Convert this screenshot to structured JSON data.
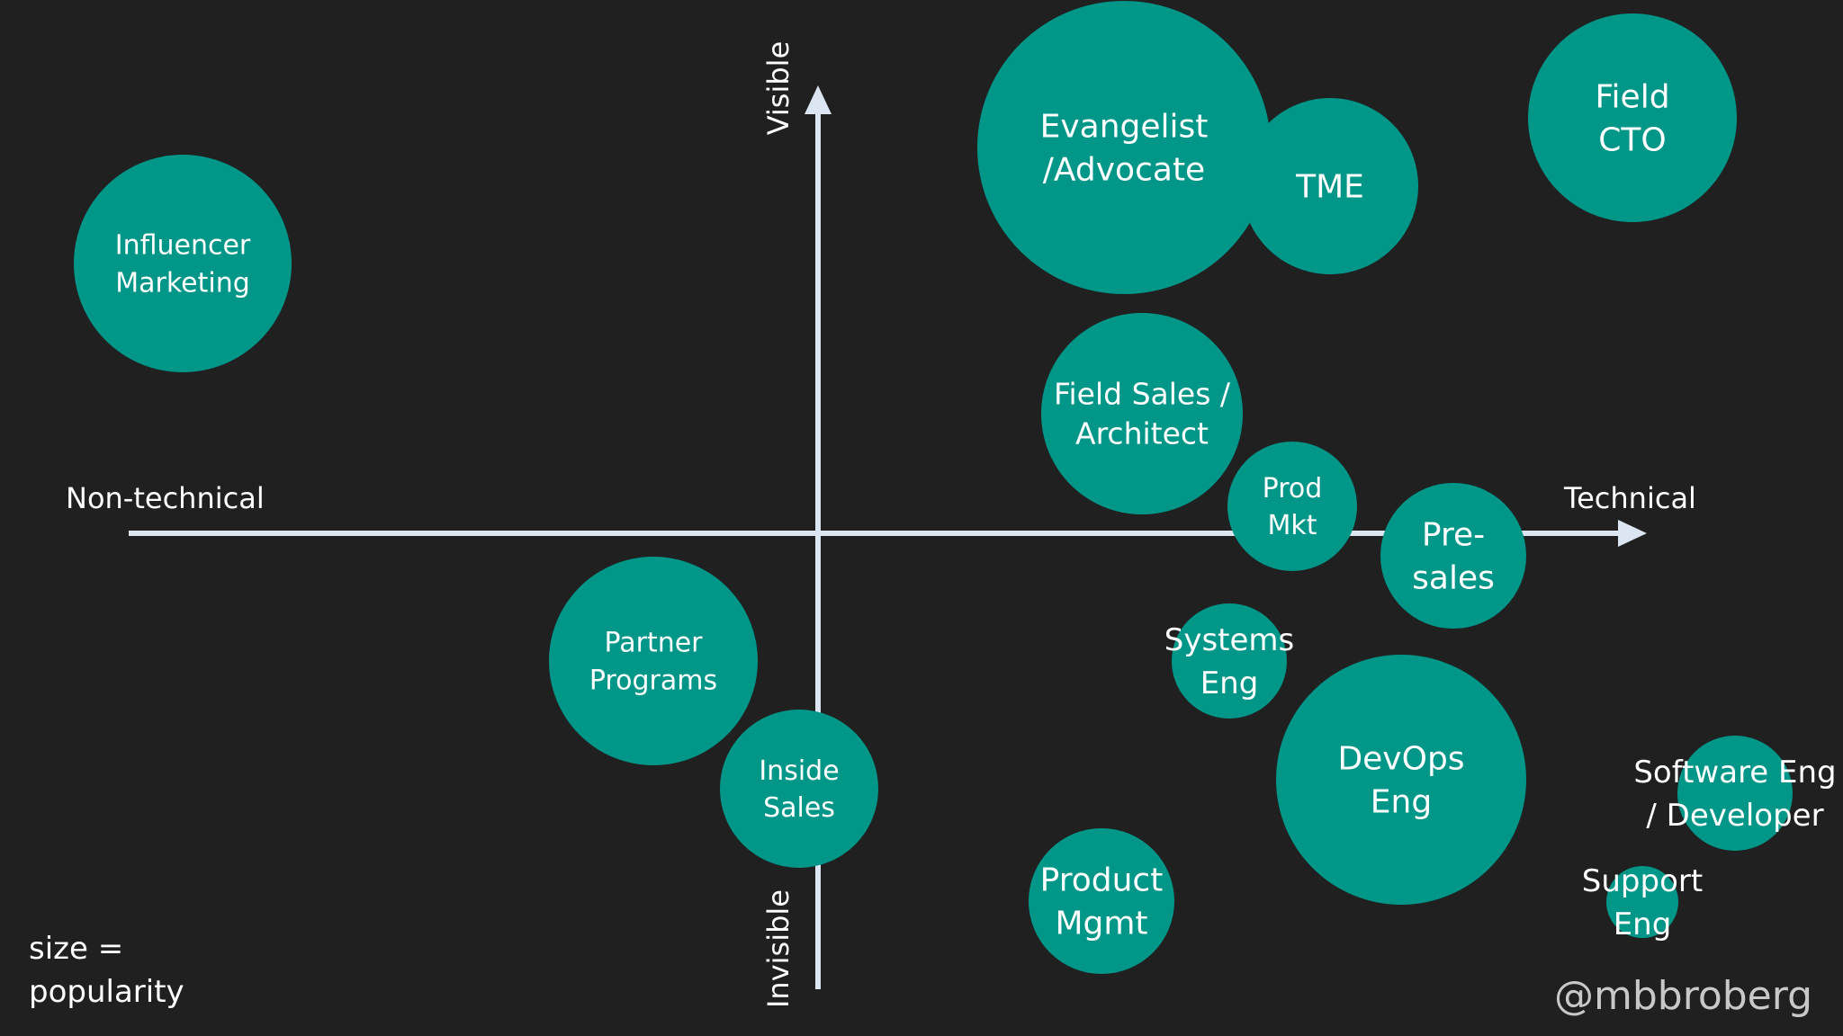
{
  "axes": {
    "x_left_label": "Non-technical",
    "x_right_label": "Technical",
    "y_top_label": "Visible",
    "y_bottom_label": "Invisible"
  },
  "legend": {
    "line1": "size =",
    "line2": "popularity"
  },
  "credit": "@mbbroberg",
  "colors": {
    "background": "#202020",
    "bubble": "#009688",
    "axis": "#dce6f2",
    "text": "#ffffff",
    "credit": "#c8c8c8"
  },
  "bubbles": [
    {
      "id": "influencer-marketing",
      "lines": [
        "Influencer",
        "Marketing"
      ]
    },
    {
      "id": "evangelist-advocate",
      "lines": [
        "Evangelist",
        "/Advocate"
      ]
    },
    {
      "id": "tme",
      "lines": [
        "TME"
      ]
    },
    {
      "id": "field-cto",
      "lines": [
        "Field",
        "CTO"
      ]
    },
    {
      "id": "field-sales-architect",
      "lines": [
        "Field Sales /",
        "Architect"
      ]
    },
    {
      "id": "prod-mkt",
      "lines": [
        "Prod",
        "Mkt"
      ]
    },
    {
      "id": "pre-sales",
      "lines": [
        "Pre-",
        "sales"
      ]
    },
    {
      "id": "partner-programs",
      "lines": [
        "Partner",
        "Programs"
      ]
    },
    {
      "id": "inside-sales",
      "lines": [
        "Inside",
        "Sales"
      ]
    },
    {
      "id": "systems-eng",
      "lines": [
        "Systems",
        "Eng"
      ]
    },
    {
      "id": "devops-eng",
      "lines": [
        "DevOps",
        "Eng"
      ]
    },
    {
      "id": "product-mgmt",
      "lines": [
        "Product",
        "Mgmt"
      ]
    },
    {
      "id": "software-eng-developer",
      "lines": [
        "Software Eng",
        "/ Developer"
      ]
    },
    {
      "id": "support-eng",
      "lines": [
        "Support",
        "Eng"
      ]
    }
  ]
}
